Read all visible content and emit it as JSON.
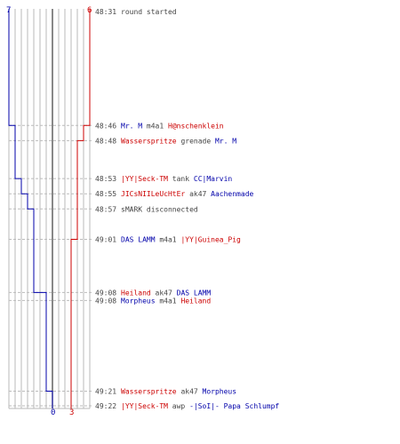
{
  "colors": {
    "blue_team": "#0000aa",
    "red_team": "#cc0000",
    "text": "#444444",
    "grid": "#b8b8b8",
    "center": "#555555",
    "dash": "#bbbbbb"
  },
  "chart_data": {
    "type": "line",
    "grid": true,
    "legend": "none",
    "title": "",
    "xlabel": "",
    "ylabel": "",
    "xlim": [
      0,
      7
    ],
    "x_labels": {
      "top_left": "7",
      "top_right": "6",
      "bottom_blue": "0",
      "bottom_red": "3"
    },
    "series": [
      {
        "team": "blue",
        "steps": [
          {
            "time": "48:31",
            "value": 7
          },
          {
            "time": "48:46",
            "value": 6
          },
          {
            "time": "48:53",
            "value": 5
          },
          {
            "time": "48:55",
            "value": 4
          },
          {
            "time": "48:57",
            "value": 3
          },
          {
            "time": "49:08",
            "value": 2
          },
          {
            "time": "49:08",
            "value": 1
          },
          {
            "time": "49:21",
            "value": 0
          },
          {
            "time": "49:22",
            "value": 0
          }
        ]
      },
      {
        "team": "red",
        "steps": [
          {
            "time": "48:31",
            "value": 6
          },
          {
            "time": "48:46",
            "value": 5
          },
          {
            "time": "48:48",
            "value": 4
          },
          {
            "time": "49:01",
            "value": 3
          },
          {
            "time": "49:22",
            "value": 3
          }
        ]
      }
    ],
    "events": [
      {
        "time": "48:31",
        "parts": [
          {
            "text": "round started",
            "team": "neutral"
          }
        ]
      },
      {
        "time": "48:46",
        "parts": [
          {
            "text": "Mr. M",
            "team": "blue"
          },
          {
            "text": " m4a1 ",
            "team": "neutral"
          },
          {
            "text": "H@nschenklein",
            "team": "red"
          }
        ]
      },
      {
        "time": "48:48",
        "parts": [
          {
            "text": "Wasserspritze",
            "team": "red"
          },
          {
            "text": " grenade ",
            "team": "neutral"
          },
          {
            "text": "Mr. M",
            "team": "blue"
          }
        ]
      },
      {
        "time": "48:53",
        "parts": [
          {
            "text": "|YY|Seck-TM",
            "team": "red"
          },
          {
            "text": " tank ",
            "team": "neutral"
          },
          {
            "text": "CC|Marvin",
            "team": "blue"
          }
        ]
      },
      {
        "time": "48:55",
        "parts": [
          {
            "text": "JICsNIILeUcHtEr",
            "team": "red"
          },
          {
            "text": " ak47 ",
            "team": "neutral"
          },
          {
            "text": "Aachenmade",
            "team": "blue"
          }
        ]
      },
      {
        "time": "48:57",
        "parts": [
          {
            "text": "sMARK disconnected",
            "team": "neutral"
          }
        ]
      },
      {
        "time": "49:01",
        "parts": [
          {
            "text": "DAS LAMM",
            "team": "blue"
          },
          {
            "text": " m4a1 ",
            "team": "neutral"
          },
          {
            "text": "|YY|Guinea_Pig",
            "team": "red"
          }
        ]
      },
      {
        "time": "49:08",
        "parts": [
          {
            "text": "Heiland",
            "team": "red"
          },
          {
            "text": " ak47 ",
            "team": "neutral"
          },
          {
            "text": "DAS LAMM",
            "team": "blue"
          }
        ]
      },
      {
        "time": "49:08",
        "parts": [
          {
            "text": "Morpheus",
            "team": "blue"
          },
          {
            "text": " m4a1 ",
            "team": "neutral"
          },
          {
            "text": "Heiland",
            "team": "red"
          }
        ]
      },
      {
        "time": "49:21",
        "parts": [
          {
            "text": "Wasserspritze",
            "team": "red"
          },
          {
            "text": " ak47 ",
            "team": "neutral"
          },
          {
            "text": "Morpheus",
            "team": "blue"
          }
        ]
      },
      {
        "time": "49:22",
        "parts": [
          {
            "text": "|YY|Seck-TM",
            "team": "red"
          },
          {
            "text": " awp ",
            "team": "neutral"
          },
          {
            "text": "-|SoI|- Papa Schlumpf",
            "team": "blue"
          }
        ]
      }
    ]
  }
}
